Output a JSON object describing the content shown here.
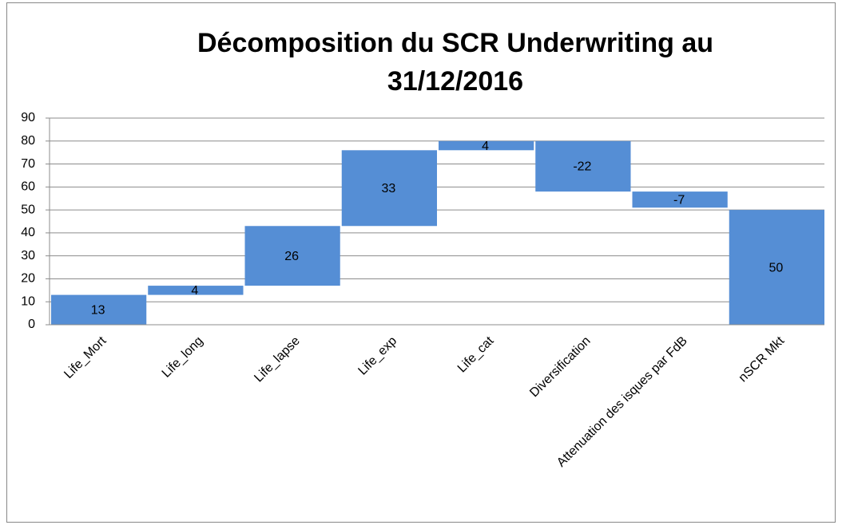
{
  "chart_data": {
    "type": "waterfall",
    "title": "Décomposition du SCR Underwriting au 31/12/2016",
    "categories": [
      "Life_Mort",
      "Life_long",
      "Life_lapse",
      "Life_exp",
      "Life_cat",
      "Diversification",
      "Attenuation des isques par FdB",
      "nSCR Mkt"
    ],
    "values": [
      13,
      4,
      26,
      33,
      4,
      -22,
      -7,
      50
    ],
    "color": "#558ed5",
    "ylim": [
      0,
      90
    ],
    "yticks": [
      0,
      10,
      20,
      30,
      40,
      50,
      60,
      70,
      80,
      90
    ],
    "grid": true
  }
}
